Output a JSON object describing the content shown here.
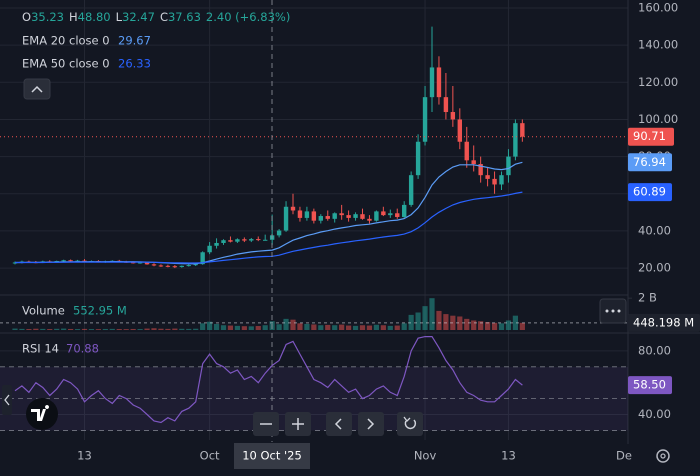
{
  "chart_data": {
    "type": "candlestick",
    "categories": [
      null,
      null,
      null,
      null,
      null,
      null,
      null,
      null,
      null,
      null,
      "13",
      null,
      null,
      null,
      null,
      null,
      null,
      null,
      null,
      null,
      null,
      null,
      null,
      null,
      null,
      null,
      null,
      null,
      "Oct",
      null,
      null,
      null,
      null,
      null,
      null,
      null,
      null,
      null,
      null,
      null,
      null,
      null,
      null,
      null,
      null,
      null,
      null,
      null,
      null,
      null,
      null,
      null,
      null,
      null,
      null,
      null,
      null,
      null,
      null,
      "Nov",
      null,
      null,
      null,
      null,
      null,
      null,
      null,
      null,
      null,
      null,
      null,
      "13",
      null,
      null
    ],
    "crosshair_label": "10 Oct '25",
    "future_label": "De",
    "candles": {
      "open": [
        22.5,
        23,
        23.5,
        23.2,
        23,
        23.6,
        23.4,
        23.8,
        24.2,
        23.8,
        24,
        23.5,
        23.8,
        23.4,
        23.6,
        23.9,
        23.4,
        23.1,
        22.8,
        23,
        22,
        21.4,
        21.2,
        21,
        20.6,
        21.2,
        21.6,
        22.1,
        28.5,
        32,
        33.5,
        35,
        34.2,
        35.5,
        34.8,
        35.6,
        35.2,
        35.23,
        37.6,
        40.2,
        53,
        51,
        47,
        50.5,
        45.5,
        48,
        46.5,
        49.5,
        48.5,
        47,
        49,
        46.5,
        45.5,
        50.5,
        48.5,
        49.5,
        47.5,
        54,
        70,
        88,
        112,
        128,
        112,
        104,
        100,
        88,
        78,
        76,
        70,
        68,
        65,
        70,
        80,
        98
      ],
      "high": [
        23.5,
        24,
        24,
        23.8,
        24,
        24.2,
        24,
        24.5,
        24.6,
        24.4,
        24.8,
        24.1,
        24.3,
        24,
        24.2,
        24.4,
        23.9,
        23.6,
        23.4,
        23.5,
        22.6,
        22,
        21.8,
        21.6,
        21.4,
        22,
        22.4,
        29,
        34,
        36,
        35.5,
        37,
        36,
        36.5,
        36.2,
        37,
        38,
        48.8,
        41,
        56,
        60,
        53,
        53,
        52,
        49,
        51,
        50,
        54,
        51,
        50,
        52,
        48.5,
        51,
        53,
        51.5,
        52,
        56,
        72,
        92,
        118,
        150,
        134,
        125,
        118,
        106,
        96,
        86,
        80,
        74,
        72,
        72,
        84,
        100,
        100
      ],
      "low": [
        22,
        22.5,
        22.8,
        22.6,
        22.7,
        23,
        22.9,
        23.2,
        23.5,
        23.3,
        23.6,
        23,
        23.2,
        22.8,
        23.1,
        23.3,
        22.8,
        22.4,
        22.3,
        21.8,
        21,
        20.6,
        20.4,
        20,
        20.2,
        20.8,
        21.1,
        21.8,
        27.5,
        30.5,
        32.5,
        33.8,
        33.5,
        34,
        34,
        34.5,
        34.8,
        32.47,
        36.5,
        39.5,
        49,
        45,
        45.5,
        44,
        44,
        45.5,
        44.5,
        46,
        45,
        45.5,
        46,
        44,
        45,
        48,
        47,
        46.5,
        47,
        53,
        68,
        86,
        104,
        108,
        100,
        96,
        84,
        74,
        72,
        66,
        64,
        60,
        62,
        66,
        78,
        88
      ],
      "close": [
        23,
        23.5,
        23.2,
        23,
        23.6,
        23.4,
        23.8,
        24.2,
        23.8,
        24,
        23.5,
        23.8,
        23.4,
        23.6,
        23.9,
        23.4,
        23.1,
        22.8,
        23,
        22,
        21.4,
        21.2,
        21,
        20.6,
        21.2,
        21.6,
        22.1,
        28.5,
        32,
        33.5,
        35,
        34.2,
        35.5,
        34.8,
        35.6,
        35.2,
        35.23,
        37.63,
        40.2,
        53,
        51,
        47,
        50.5,
        45.5,
        48,
        46.5,
        49.5,
        48.5,
        47,
        49,
        46.5,
        45.5,
        50.5,
        48.5,
        49.5,
        47.5,
        54,
        70,
        88,
        112,
        128,
        112,
        104,
        100,
        88,
        78,
        76,
        70,
        68,
        65,
        70,
        80,
        98,
        90.71
      ],
      "legend_keys": [
        "O",
        "H",
        "L",
        "C"
      ],
      "legend_labels": [
        "35.23",
        "48.80",
        "32.47",
        "37.63"
      ],
      "change_label": "2.40 (+6.83%)",
      "up_color": "#26a69a",
      "down_color": "#ef5350"
    },
    "ylim": [
      5.5,
      164.3
    ],
    "yticks": [
      {
        "value": 20,
        "label": "20.00"
      },
      {
        "value": 40,
        "label": "40.00"
      },
      {
        "value": 60,
        "label": "60.00"
      },
      {
        "value": 80,
        "label": "80.00"
      },
      {
        "value": 100,
        "label": "100.00"
      },
      {
        "value": 120,
        "label": "120.00"
      },
      {
        "value": 140,
        "label": "140.00"
      },
      {
        "value": 160,
        "label": "160.00"
      }
    ],
    "series": [
      {
        "name": "EMA 20 close 0",
        "color": "#5b9cf6",
        "values": [
          23,
          23,
          23.1,
          23.1,
          23.1,
          23.2,
          23.2,
          23.3,
          23.3,
          23.4,
          23.4,
          23.4,
          23.4,
          23.4,
          23.5,
          23.5,
          23.4,
          23.4,
          23.3,
          23.2,
          23.1,
          22.9,
          22.7,
          22.5,
          22.4,
          22.3,
          22.3,
          22.9,
          23.8,
          24.8,
          25.8,
          26.6,
          27.5,
          28.1,
          28.7,
          29.1,
          29.4,
          29.67,
          30.9,
          33,
          35,
          36.2,
          37.5,
          38.4,
          39.4,
          40.1,
          41,
          41.6,
          42.2,
          42.9,
          43.3,
          43.6,
          44.3,
          44.9,
          45.5,
          45.8,
          46.6,
          48.8,
          52.4,
          58.1,
          64.7,
          69,
          72,
          74.4,
          75.6,
          75.6,
          75.6,
          74.9,
          74.2,
          73.3,
          73,
          73.6,
          75.9,
          76.94
        ]
      },
      {
        "name": "EMA 50 close 0",
        "color": "#2962ff",
        "values": [
          23,
          23,
          23,
          23,
          23,
          23.1,
          23.1,
          23.1,
          23.2,
          23.2,
          23.2,
          23.2,
          23.2,
          23.2,
          23.2,
          23.2,
          23.2,
          23.2,
          23.2,
          23.2,
          23.1,
          23,
          22.9,
          22.8,
          22.8,
          22.7,
          22.7,
          22.9,
          23.3,
          23.7,
          24.1,
          24.5,
          24.9,
          25.3,
          25.7,
          26,
          26.2,
          26.33,
          26.9,
          28,
          29,
          29.7,
          30.5,
          31.1,
          31.8,
          32.3,
          33,
          33.6,
          34.1,
          34.7,
          35.1,
          35.6,
          36.2,
          36.7,
          37.2,
          37.6,
          38.3,
          39.6,
          41.6,
          44.4,
          47.5,
          50,
          52.1,
          54,
          55.3,
          56.2,
          57,
          57.5,
          57.9,
          58.3,
          58.8,
          59.4,
          60.2,
          60.89
        ]
      }
    ],
    "volume": {
      "name": "Volume",
      "values": [
        90000000,
        70000000,
        60000000,
        80000000,
        70000000,
        60000000,
        75000000,
        90000000,
        65000000,
        60000000,
        70000000,
        60000000,
        55000000,
        65000000,
        70000000,
        60000000,
        55000000,
        65000000,
        60000000,
        90000000,
        110000000,
        80000000,
        70000000,
        90000000,
        75000000,
        70000000,
        80000000,
        420000000,
        520000000,
        380000000,
        300000000,
        280000000,
        260000000,
        240000000,
        230000000,
        250000000,
        300000000,
        552950000,
        360000000,
        700000000,
        650000000,
        420000000,
        380000000,
        350000000,
        300000000,
        320000000,
        300000000,
        340000000,
        280000000,
        260000000,
        300000000,
        280000000,
        330000000,
        300000000,
        260000000,
        280000000,
        420000000,
        950000000,
        1100000000,
        1500000000,
        2000000000,
        1200000000,
        1000000000,
        900000000,
        850000000,
        700000000,
        600000000,
        550000000,
        500000000,
        450000000,
        420000000,
        600000000,
        900000000,
        448198000
      ],
      "legend_label": "552.95 M",
      "last_label": "448.198 M",
      "ylim": [
        0,
        2200000000
      ],
      "yticks": [
        {
          "value": 2000000000,
          "label": "2 B"
        }
      ]
    },
    "rsi": {
      "name": "RSI 14",
      "color": "#7e57c2",
      "values": [
        55,
        58,
        54,
        60,
        57,
        52,
        56,
        62,
        60,
        56,
        48,
        52,
        55,
        50,
        47,
        52,
        50,
        46,
        44,
        40,
        36,
        35,
        38,
        36,
        42,
        44,
        48,
        72,
        78,
        72,
        70,
        66,
        68,
        62,
        64,
        60,
        66,
        70.88,
        74,
        84,
        86,
        78,
        70,
        62,
        60,
        57,
        62,
        58,
        54,
        56,
        50,
        52,
        56,
        58,
        54,
        52,
        64,
        80,
        88,
        89,
        89,
        82,
        74,
        68,
        60,
        54,
        52,
        49,
        48,
        48,
        52,
        56,
        62,
        58.5
      ],
      "last_label": "58.50",
      "ylim": [
        24,
        90
      ],
      "yticks": [
        {
          "value": 80,
          "label": "80.00"
        },
        {
          "value": 40,
          "label": "40.00"
        }
      ],
      "bands": [
        70,
        50,
        30
      ]
    },
    "grid": true
  }
}
